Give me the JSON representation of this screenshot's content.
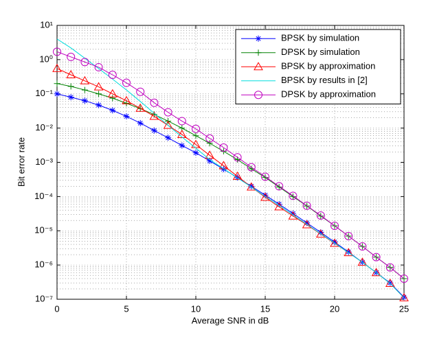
{
  "chart_data": {
    "type": "line",
    "xlabel": "Average SNR in dB",
    "ylabel": "Bit error rate",
    "x": [
      0,
      1,
      2,
      3,
      4,
      5,
      6,
      7,
      8,
      9,
      10,
      11,
      12,
      13,
      14,
      15,
      16,
      17,
      18,
      19,
      20,
      21,
      22,
      23,
      24,
      25
    ],
    "xlim": [
      0,
      25
    ],
    "xticks": [
      0,
      5,
      10,
      15,
      20,
      25
    ],
    "ylim": [
      1e-07,
      10
    ],
    "yscale": "log",
    "yticks": [
      {
        "value": 1e-07,
        "label": "10⁻⁷"
      },
      {
        "value": 1e-06,
        "label": "10⁻⁶"
      },
      {
        "value": 1e-05,
        "label": "10⁻⁵"
      },
      {
        "value": 0.0001,
        "label": "10⁻⁴"
      },
      {
        "value": 0.001,
        "label": "10⁻³"
      },
      {
        "value": 0.01,
        "label": "10⁻²"
      },
      {
        "value": 0.1,
        "label": "10⁻¹"
      },
      {
        "value": 1,
        "label": "10⁰"
      },
      {
        "value": 10,
        "label": "10¹"
      }
    ],
    "grid": true,
    "minor_grid": true,
    "legend_position": "northeast",
    "series": [
      {
        "name": "BPSK by simulation",
        "color": "#0000ff",
        "marker": "star",
        "values": [
          0.1,
          0.08,
          0.063,
          0.047,
          0.033,
          0.022,
          0.014,
          0.0085,
          0.0052,
          0.0031,
          0.0019,
          0.0011,
          0.00063,
          0.00036,
          0.0002,
          0.00011,
          6e-05,
          3.2e-05,
          1.7e-05,
          9e-06,
          4.7e-06,
          2.4e-06,
          1.2e-06,
          6e-07,
          3e-07,
          1.15e-07
        ]
      },
      {
        "name": "DPSK by simulation",
        "color": "#008000",
        "marker": "plus",
        "values": [
          0.2,
          0.165,
          0.13,
          0.1,
          0.075,
          0.053,
          0.037,
          0.025,
          0.016,
          0.01,
          0.006,
          0.0036,
          0.0021,
          0.0012,
          0.00065,
          0.00036,
          0.00019,
          0.0001,
          5.3e-05,
          2.7e-05,
          1.4e-05,
          7e-06,
          3.5e-06,
          1.7e-06,
          8.5e-07,
          4e-07
        ]
      },
      {
        "name": "BPSK by approximation",
        "color": "#ff0000",
        "marker": "triangle",
        "values": [
          0.55,
          0.36,
          0.24,
          0.16,
          0.1,
          0.063,
          0.038,
          0.022,
          0.012,
          0.0065,
          0.0033,
          0.0016,
          0.0008,
          0.00039,
          0.00019,
          9.5e-05,
          5e-05,
          2.7e-05,
          1.5e-05,
          8e-06,
          4.3e-06,
          2.3e-06,
          1.2e-06,
          6e-07,
          2.9e-07,
          1.1e-07
        ]
      },
      {
        "name": "BPSK by results in [2]",
        "color": "#00dddd",
        "marker": "none",
        "values": [
          4,
          2.2,
          1.1,
          0.55,
          0.27,
          0.13,
          0.06,
          0.027,
          0.012,
          0.0055,
          0.0026,
          0.0012,
          0.00065,
          0.00035,
          0.00019,
          0.0001,
          5.5e-05,
          2.9e-05,
          1.55e-05,
          8.2e-06,
          4.4e-06,
          2.3e-06,
          1.2e-06,
          6e-07,
          2.9e-07,
          1.1e-07
        ]
      },
      {
        "name": "DPSK by approximation",
        "color": "#bf00bf",
        "marker": "circle",
        "values": [
          1.7,
          1.2,
          0.85,
          0.6,
          0.36,
          0.21,
          0.115,
          0.055,
          0.029,
          0.016,
          0.0095,
          0.005,
          0.0027,
          0.0014,
          0.00072,
          0.00038,
          0.0002,
          0.000105,
          5.4e-05,
          2.8e-05,
          1.4e-05,
          7e-06,
          3.5e-06,
          1.7e-06,
          8.5e-07,
          4e-07
        ]
      }
    ]
  }
}
